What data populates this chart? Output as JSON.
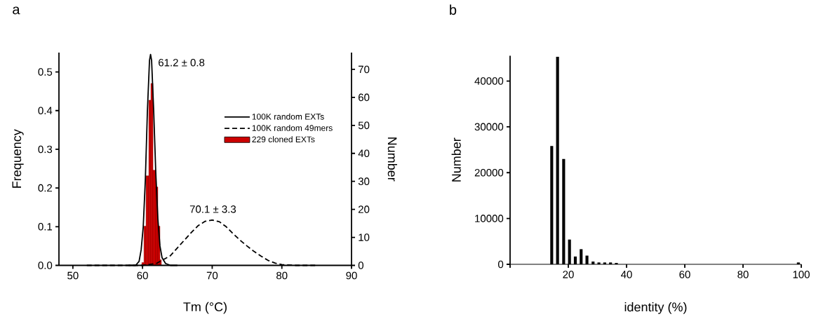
{
  "chart_data": [
    {
      "type": "line",
      "title": "a",
      "xlabel": "Tm (°C)",
      "ylabel": "Frequency",
      "y2label": "Number",
      "xlim": [
        48,
        90
      ],
      "ylim": [
        0,
        0.55
      ],
      "y2lim": [
        0,
        76
      ],
      "xticks": [
        50,
        60,
        70,
        80,
        90
      ],
      "yticks": [
        {
          "value": 0,
          "label": "0.0"
        },
        0.1,
        0.2,
        0.3,
        0.4,
        0.5
      ],
      "y2ticks": [
        0,
        10,
        20,
        30,
        40,
        50,
        60,
        70
      ],
      "legend": "right",
      "annotations": [
        {
          "text": "61.2 ± 0.8",
          "x": 61.2,
          "y": 0.545
        },
        {
          "text": "70.1 ± 3.3",
          "x": 70.1,
          "y": 0.117
        }
      ],
      "series": [
        {
          "name": "100K random EXTs",
          "type": "line",
          "line_style": "solid",
          "color": "#000000",
          "x": [
            58,
            59,
            59.5,
            59.8,
            60.1,
            60.4,
            60.7,
            61.0,
            61.15,
            61.3,
            61.6,
            61.9,
            62.2,
            62.5,
            62.8,
            63.3,
            64,
            65
          ],
          "values": [
            0,
            0,
            0.01,
            0.04,
            0.1,
            0.22,
            0.4,
            0.53,
            0.545,
            0.53,
            0.4,
            0.24,
            0.12,
            0.05,
            0.02,
            0.005,
            0,
            0
          ]
        },
        {
          "name": "100K random 49mers",
          "type": "line",
          "line_style": "dashed",
          "color": "#000000",
          "x": [
            52,
            56,
            60,
            62,
            63,
            64,
            65,
            66,
            67,
            68,
            69,
            70,
            71,
            72,
            73,
            74,
            75,
            76,
            77,
            78,
            79,
            80,
            82,
            85
          ],
          "values": [
            0,
            0,
            0,
            0.005,
            0.015,
            0.025,
            0.045,
            0.065,
            0.085,
            0.103,
            0.114,
            0.117,
            0.113,
            0.1,
            0.082,
            0.065,
            0.05,
            0.036,
            0.024,
            0.013,
            0.006,
            0.002,
            0,
            0
          ]
        },
        {
          "name": "229 cloned EXTs",
          "type": "histogram",
          "axis": "y2",
          "color": "#cc0000",
          "bins": [
            59.9,
            60.2,
            60.5,
            60.9,
            61.2,
            61.5,
            61.9,
            62.2,
            62.5,
            62.7
          ],
          "values": [
            1,
            14,
            32,
            59,
            65,
            34,
            28,
            14,
            2
          ]
        }
      ]
    },
    {
      "type": "bar",
      "title": "b",
      "xlabel": "identity (%)",
      "ylabel": "Number",
      "xlim": [
        0,
        100
      ],
      "ylim": [
        0,
        45500
      ],
      "xticks": [
        {
          "value": 0,
          "label": null
        },
        20,
        40,
        60,
        80,
        100
      ],
      "yticks": [
        0,
        10000,
        20000,
        30000,
        40000
      ],
      "color": "#000000",
      "x": [
        14.3,
        16.3,
        18.4,
        20.4,
        22.4,
        24.4,
        26.4,
        28.5,
        30.5,
        32.5,
        34.5,
        36.5,
        99
      ],
      "values": [
        25800,
        45300,
        23000,
        5400,
        1700,
        3300,
        1900,
        600,
        400,
        400,
        400,
        300,
        400
      ]
    }
  ]
}
